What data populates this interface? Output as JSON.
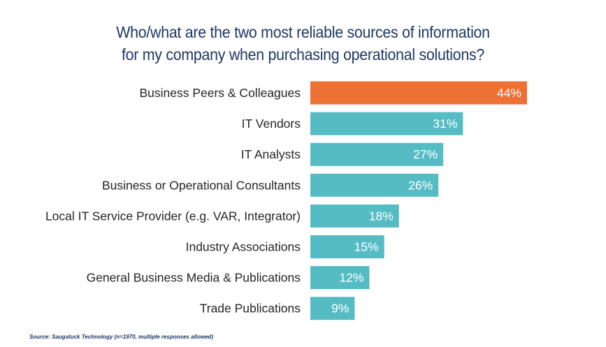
{
  "chart_data": {
    "type": "bar",
    "orientation": "horizontal",
    "title_lines": [
      "Who/what are the two most reliable sources of information",
      "for my company when purchasing operational solutions?"
    ],
    "categories": [
      "Business Peers & Colleagues",
      "IT Vendors",
      "IT Analysts",
      "Business or Operational Consultants",
      "Local IT Service Provider (e.g. VAR, Integrator)",
      "Industry Associations",
      "General Business Media & Publications",
      "Trade Publications"
    ],
    "values": [
      44,
      31,
      27,
      26,
      18,
      15,
      12,
      9
    ],
    "value_labels": [
      "44%",
      "31%",
      "27%",
      "26%",
      "18%",
      "15%",
      "12%",
      "9%"
    ],
    "highlight_index": 0,
    "colors": {
      "highlight": "#ed7034",
      "default": "#56bcc4",
      "title": "#1f3864",
      "label": "#262626",
      "value_text": "#ffffff"
    },
    "xlim": [
      0,
      44
    ],
    "grid": false,
    "legend": "none"
  },
  "source_note": "Source: Saugatuck Technology (n=1970, multiple responses allowed)"
}
